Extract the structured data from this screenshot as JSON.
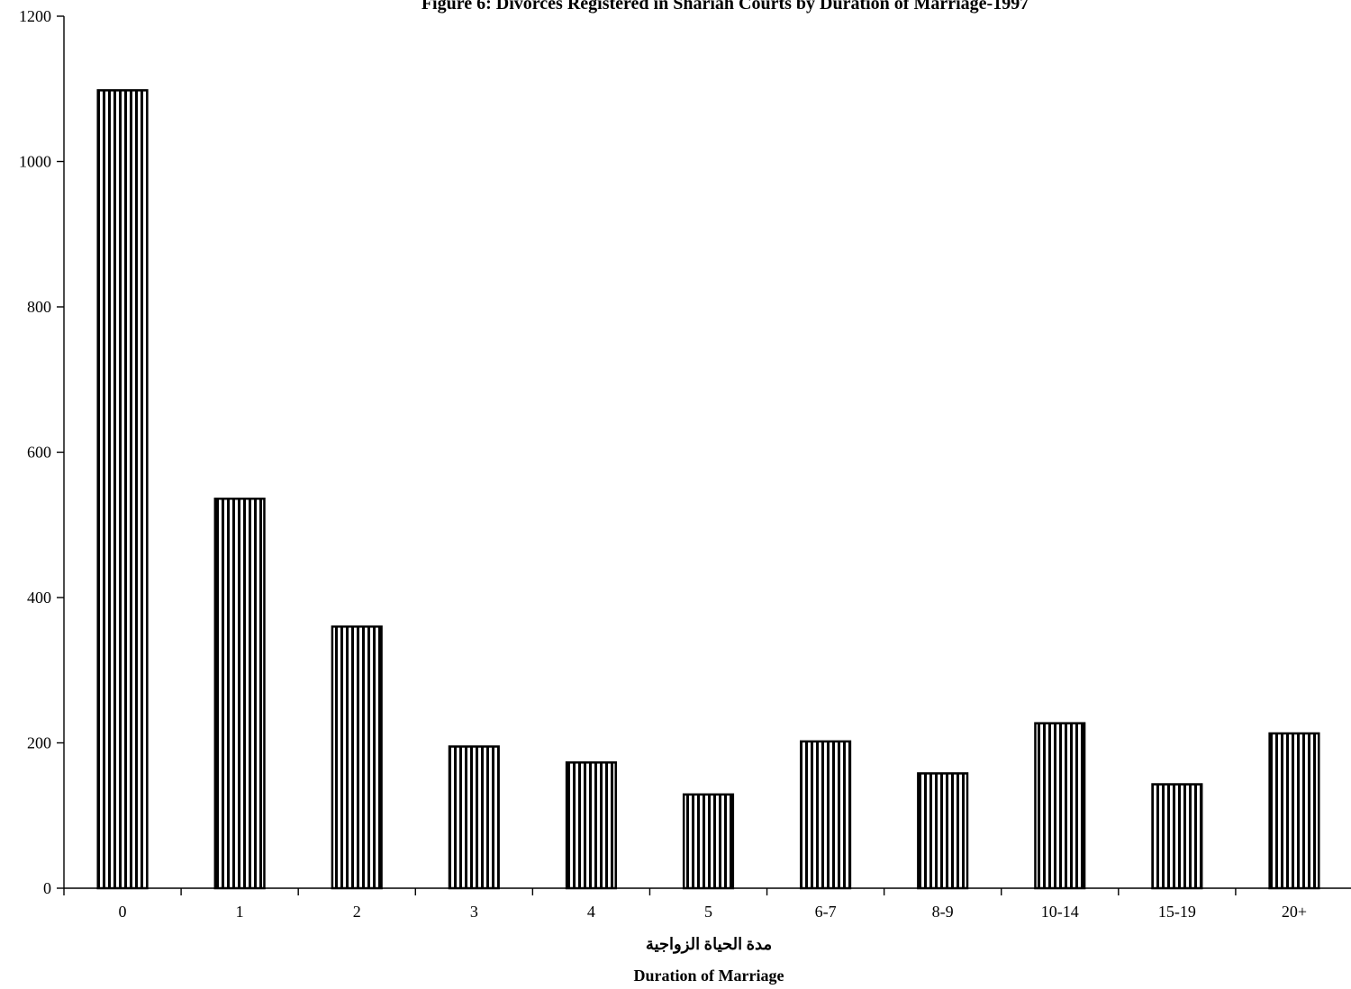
{
  "chart_data": {
    "type": "bar",
    "title": "Figure 6: Divorces Registered in Shariah Courts by Duration of  Marriage-1997",
    "categories": [
      "0",
      "1",
      "2",
      "3",
      "4",
      "5",
      "6-7",
      "8-9",
      "10-14",
      "15-19",
      "20+"
    ],
    "values": [
      1098,
      536,
      360,
      195,
      173,
      129,
      202,
      158,
      227,
      143,
      213
    ],
    "xlabel": "Duration of Marriage",
    "xlabel_arabic": "مدة الحياة الزواجية",
    "ylabel": "",
    "ylim": [
      0,
      1200
    ],
    "yticks": [
      0,
      200,
      400,
      600,
      800,
      1000,
      1200
    ],
    "grid": false,
    "legend": "none",
    "bar_fill": "vertical black-and-white stripes"
  }
}
